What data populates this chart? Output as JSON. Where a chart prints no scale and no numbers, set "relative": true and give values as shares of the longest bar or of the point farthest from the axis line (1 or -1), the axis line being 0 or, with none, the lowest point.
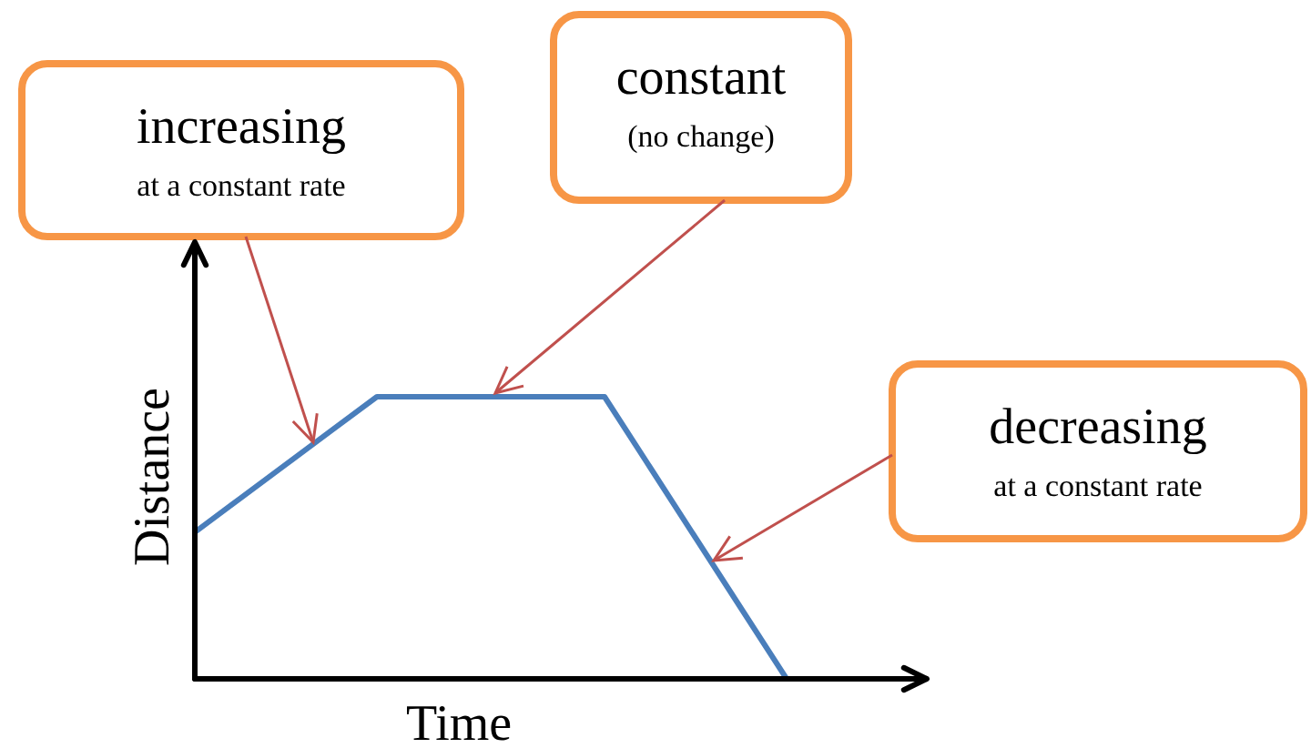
{
  "chart_data": {
    "type": "line",
    "relative": true,
    "xlabel": "Time",
    "ylabel": "Distance",
    "categories": [
      null,
      null,
      null,
      null,
      null,
      null,
      null,
      null,
      null,
      null,
      null,
      null,
      null,
      null
    ],
    "marker": "none",
    "line_style": "solid",
    "series": [
      {
        "color": "#4a7ebb",
        "values": [
          0.52,
          0.64,
          0.76,
          0.88,
          1,
          1,
          1,
          1,
          1,
          1,
          0.75,
          0.5,
          0.25,
          0
        ]
      }
    ],
    "annotations": [
      "increasing\nat a constant rate",
      "constant\n(no change)",
      "decreasing\nat a constant rate"
    ]
  }
}
